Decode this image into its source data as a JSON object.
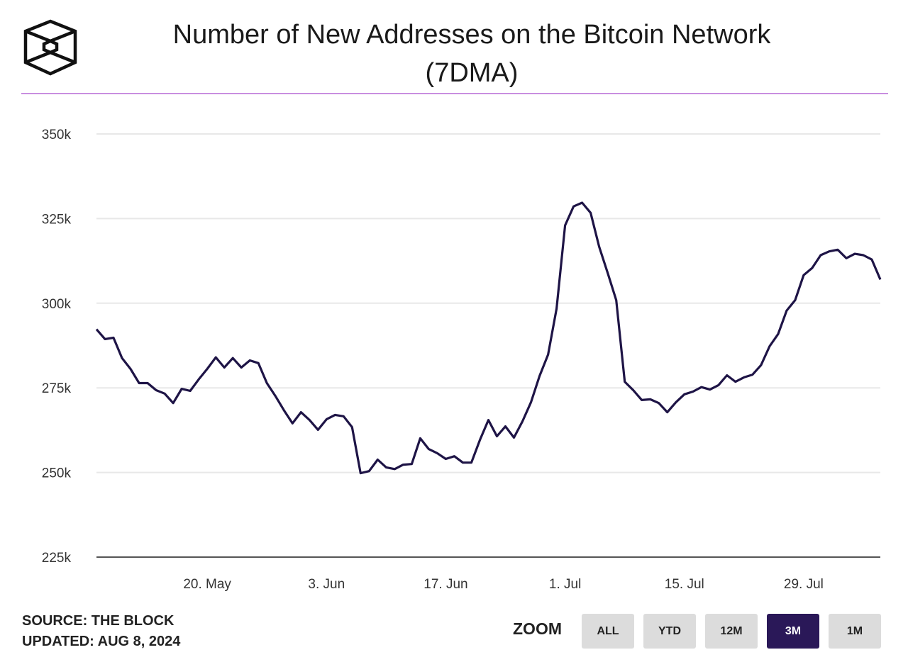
{
  "header": {
    "title_line1": "Number of New Addresses on the Bitcoin Network",
    "title_line2": "(7DMA)",
    "logo": "the-block-cube-logo"
  },
  "footer": {
    "source": "SOURCE: THE BLOCK",
    "updated": "UPDATED: AUG 8, 2024"
  },
  "zoom": {
    "label": "ZOOM",
    "buttons": [
      {
        "label": "ALL",
        "active": false
      },
      {
        "label": "YTD",
        "active": false
      },
      {
        "label": "12M",
        "active": false
      },
      {
        "label": "3M",
        "active": true
      },
      {
        "label": "1M",
        "active": false
      }
    ]
  },
  "colors": {
    "line": "#1e1446",
    "accent": "#2a1858",
    "rule": "#c98ee0",
    "grid": "#e8e8e8"
  },
  "chart_data": {
    "type": "line",
    "title": "Number of New Addresses on the Bitcoin Network (7DMA)",
    "xlabel": "",
    "ylabel": "",
    "ylim": [
      225000,
      350000
    ],
    "xlim": [
      "2024-05-07",
      "2024-08-07"
    ],
    "grid": true,
    "legend": "none",
    "y_ticks": [
      {
        "value": 225000,
        "label": "225k"
      },
      {
        "value": 250000,
        "label": "250k"
      },
      {
        "value": 275000,
        "label": "275k"
      },
      {
        "value": 300000,
        "label": "300k"
      },
      {
        "value": 325000,
        "label": "325k"
      },
      {
        "value": 350000,
        "label": "350k"
      }
    ],
    "x_ticks": [
      {
        "date": "2024-05-20",
        "label": "20. May"
      },
      {
        "date": "2024-06-03",
        "label": "3. Jun"
      },
      {
        "date": "2024-06-17",
        "label": "17. Jun"
      },
      {
        "date": "2024-07-01",
        "label": "1. Jul"
      },
      {
        "date": "2024-07-15",
        "label": "15. Jul"
      },
      {
        "date": "2024-07-29",
        "label": "29. Jul"
      }
    ],
    "dates": [
      "2024-05-07",
      "2024-05-08",
      "2024-05-09",
      "2024-05-10",
      "2024-05-11",
      "2024-05-12",
      "2024-05-13",
      "2024-05-14",
      "2024-05-15",
      "2024-05-16",
      "2024-05-17",
      "2024-05-18",
      "2024-05-19",
      "2024-05-20",
      "2024-05-21",
      "2024-05-22",
      "2024-05-23",
      "2024-05-24",
      "2024-05-25",
      "2024-05-26",
      "2024-05-27",
      "2024-05-28",
      "2024-05-29",
      "2024-05-30",
      "2024-05-31",
      "2024-06-01",
      "2024-06-02",
      "2024-06-03",
      "2024-06-04",
      "2024-06-05",
      "2024-06-06",
      "2024-06-07",
      "2024-06-08",
      "2024-06-09",
      "2024-06-10",
      "2024-06-11",
      "2024-06-12",
      "2024-06-13",
      "2024-06-14",
      "2024-06-15",
      "2024-06-16",
      "2024-06-17",
      "2024-06-18",
      "2024-06-19",
      "2024-06-20",
      "2024-06-21",
      "2024-06-22",
      "2024-06-23",
      "2024-06-24",
      "2024-06-25",
      "2024-06-26",
      "2024-06-27",
      "2024-06-28",
      "2024-06-29",
      "2024-06-30",
      "2024-07-01",
      "2024-07-02",
      "2024-07-03",
      "2024-07-04",
      "2024-07-05",
      "2024-07-06",
      "2024-07-07",
      "2024-07-08",
      "2024-07-09",
      "2024-07-10",
      "2024-07-11",
      "2024-07-12",
      "2024-07-13",
      "2024-07-14",
      "2024-07-15",
      "2024-07-16",
      "2024-07-17",
      "2024-07-18",
      "2024-07-19",
      "2024-07-20",
      "2024-07-21",
      "2024-07-22",
      "2024-07-23",
      "2024-07-24",
      "2024-07-25",
      "2024-07-26",
      "2024-07-27",
      "2024-07-28",
      "2024-07-29",
      "2024-07-30",
      "2024-07-31",
      "2024-08-01",
      "2024-08-02",
      "2024-08-03",
      "2024-08-04",
      "2024-08-05",
      "2024-08-06",
      "2024-08-07"
    ],
    "values": [
      292300,
      289400,
      289800,
      283800,
      280600,
      276400,
      276400,
      274300,
      273300,
      270500,
      274700,
      274100,
      277500,
      280600,
      284000,
      281000,
      283800,
      281000,
      283100,
      282300,
      276400,
      272600,
      268400,
      264500,
      267800,
      265500,
      262600,
      265700,
      267000,
      266600,
      263400,
      249800,
      250400,
      253800,
      251500,
      251000,
      252300,
      252500,
      260100,
      256900,
      255700,
      254000,
      254800,
      252900,
      252900,
      259600,
      265500,
      260700,
      263600,
      260300,
      265100,
      270800,
      278500,
      284800,
      298400,
      323000,
      328600,
      329700,
      326700,
      316700,
      308900,
      300900,
      276800,
      274300,
      271400,
      271600,
      270500,
      267800,
      270700,
      273100,
      273900,
      275200,
      274500,
      275800,
      278700,
      276800,
      278100,
      278900,
      281700,
      287300,
      290900,
      297800,
      300900,
      308300,
      310400,
      314200,
      315300,
      315800,
      313300,
      314600,
      314200,
      312900,
      307000
    ]
  }
}
